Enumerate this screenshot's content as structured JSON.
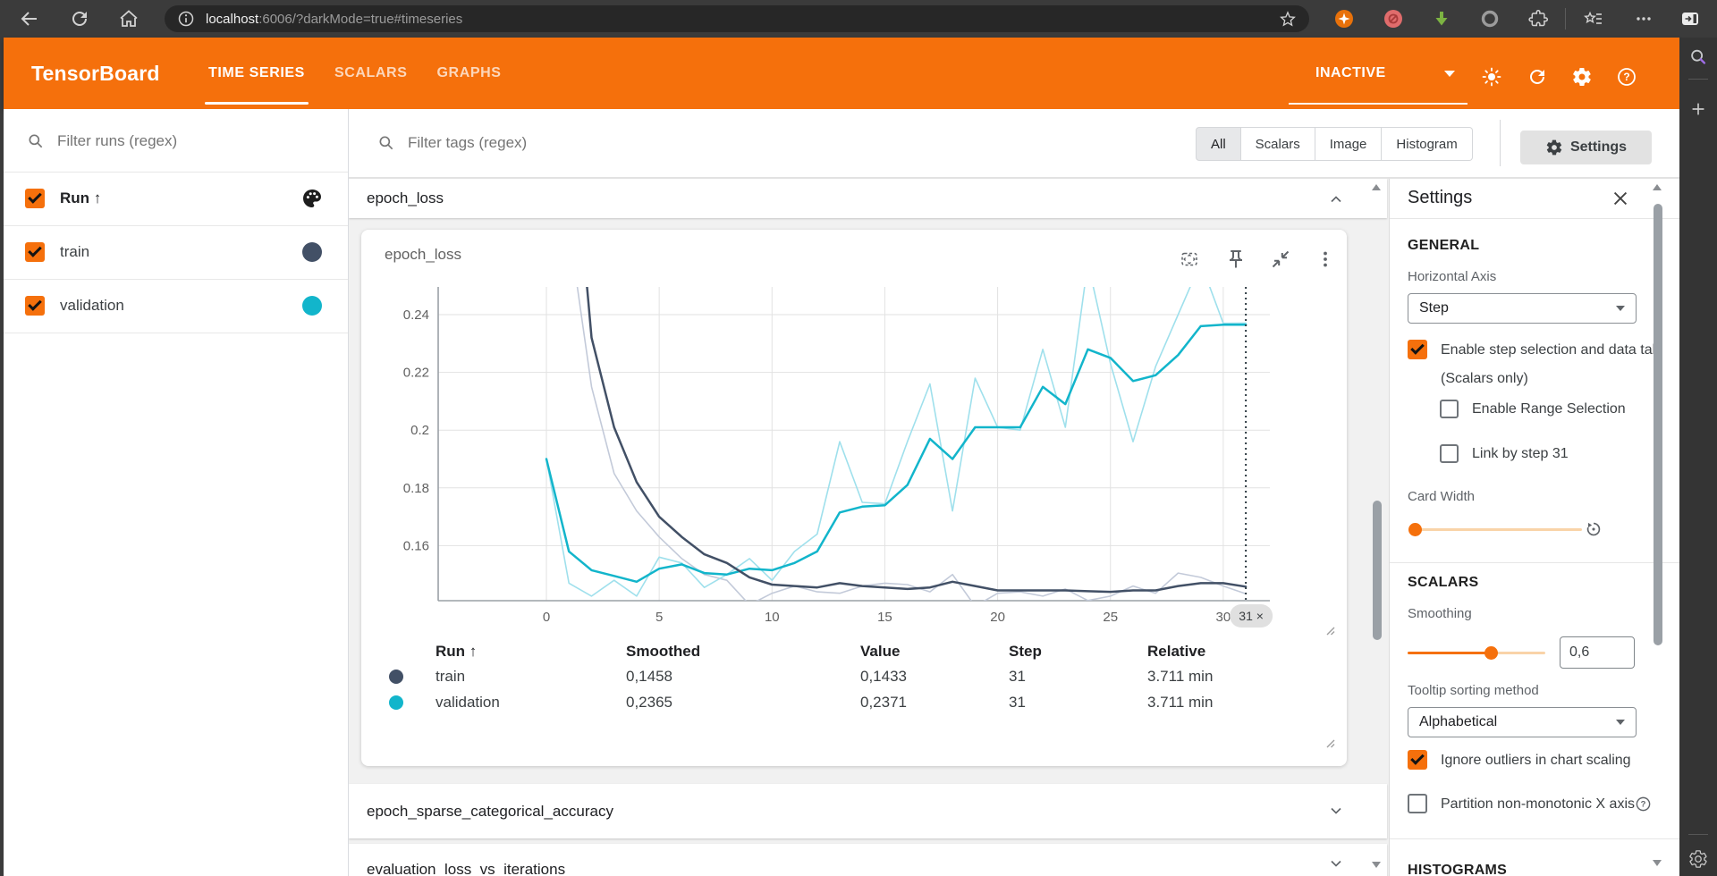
{
  "browser": {
    "url": {
      "host": "localhost",
      "rest": ":6006/?darkMode=true#timeseries"
    }
  },
  "tb_header": {
    "title": "TensorBoard",
    "tabs": [
      {
        "label": "TIME SERIES",
        "active": true
      },
      {
        "label": "SCALARS",
        "active": false
      },
      {
        "label": "GRAPHS",
        "active": false
      }
    ],
    "status": "INACTIVE"
  },
  "runs_sidebar": {
    "filter_placeholder": "Filter runs (regex)",
    "header_label": "Run ↑",
    "runs": [
      {
        "name": "train",
        "color": "#425066",
        "checked": true
      },
      {
        "name": "validation",
        "color": "#12b5cb",
        "checked": true
      }
    ]
  },
  "tag_toolbar": {
    "filter_placeholder": "Filter tags (regex)",
    "chips": [
      {
        "label": "All",
        "active": true
      },
      {
        "label": "Scalars",
        "active": false
      },
      {
        "label": "Image",
        "active": false
      },
      {
        "label": "Histogram",
        "active": false
      }
    ],
    "settings_button": "Settings"
  },
  "sections": [
    {
      "title": "epoch_loss",
      "expanded": true
    },
    {
      "title": "epoch_sparse_categorical_accuracy",
      "expanded": false
    },
    {
      "title": "evaluation_loss_vs_iterations",
      "expanded": false
    }
  ],
  "card": {
    "title": "epoch_loss",
    "step_pill": "31 ×",
    "table": {
      "headers": [
        "Run ↑",
        "Smoothed",
        "Value",
        "Step",
        "Relative"
      ],
      "rows": [
        {
          "color": "#425066",
          "run": "train",
          "smoothed": "0,1458",
          "value": "0,1433",
          "step": "31",
          "relative": "3.711 min"
        },
        {
          "color": "#12b5cb",
          "run": "validation",
          "smoothed": "0,2365",
          "value": "0,2371",
          "step": "31",
          "relative": "3.711 min"
        }
      ]
    }
  },
  "chart_data": {
    "type": "line",
    "title": "epoch_loss",
    "xlabel": "Step",
    "ylabel": "",
    "x_ticks": [
      0,
      5,
      10,
      15,
      20,
      25,
      30
    ],
    "y_ticks": [
      "0.24",
      "0.22",
      "0.2",
      "0.18",
      "0.16"
    ],
    "ylim": [
      0.141,
      0.249
    ],
    "xlim": [
      -0.5,
      31.8
    ],
    "grid": true,
    "selected_step": 31,
    "legend_position": "table-below",
    "series": [
      {
        "name": "train (smoothed)",
        "color": "#425066",
        "width": 2.5,
        "values": [
          0.6,
          0.32,
          0.232,
          0.201,
          0.182,
          0.17,
          0.163,
          0.157,
          0.154,
          0.149,
          0.1465,
          0.146,
          0.1455,
          0.147,
          0.146,
          0.1455,
          0.145,
          0.1455,
          0.1475,
          0.146,
          0.1445,
          0.1445,
          0.1445,
          0.1445,
          0.1442,
          0.144,
          0.1445,
          0.1445,
          0.146,
          0.147,
          0.147,
          0.1458
        ]
      },
      {
        "name": "train (raw)",
        "color": "#c3cad9",
        "width": 1.6,
        "values": [
          0.55,
          0.27,
          0.215,
          0.185,
          0.172,
          0.163,
          0.1555,
          0.15,
          0.148,
          0.1395,
          0.1435,
          0.146,
          0.144,
          0.1435,
          0.146,
          0.147,
          0.1465,
          0.144,
          0.15,
          0.139,
          0.1435,
          0.144,
          0.1425,
          0.145,
          0.141,
          0.1425,
          0.146,
          0.1435,
          0.1505,
          0.149,
          0.146,
          0.1433
        ]
      },
      {
        "name": "validation (smoothed)",
        "color": "#12b5cb",
        "width": 2.5,
        "values": [
          0.19,
          0.158,
          0.1515,
          0.1495,
          0.1475,
          0.152,
          0.1535,
          0.1505,
          0.15,
          0.152,
          0.1515,
          0.154,
          0.158,
          0.1715,
          0.1735,
          0.174,
          0.181,
          0.197,
          0.19,
          0.201,
          0.201,
          0.201,
          0.215,
          0.209,
          0.228,
          0.225,
          0.217,
          0.219,
          0.226,
          0.236,
          0.2365,
          0.2365
        ]
      },
      {
        "name": "validation (raw)",
        "color": "#9fe0ec",
        "width": 1.6,
        "values": [
          0.19,
          0.147,
          0.1425,
          0.148,
          0.1425,
          0.156,
          0.154,
          0.1455,
          0.15,
          0.1555,
          0.148,
          0.158,
          0.164,
          0.196,
          0.175,
          0.1745,
          0.196,
          0.216,
          0.172,
          0.218,
          0.201,
          0.2,
          0.228,
          0.201,
          0.258,
          0.223,
          0.196,
          0.222,
          0.24,
          0.258,
          0.237,
          0.2371
        ]
      }
    ]
  },
  "settings_panel": {
    "title": "Settings",
    "general": {
      "heading": "GENERAL",
      "horizontal_axis_label": "Horizontal Axis",
      "horizontal_axis_value": "Step",
      "step_selection_label": "Enable step selection and data table",
      "scalars_only": "(Scalars only)",
      "range_selection_label": "Enable Range Selection",
      "link_by_step_label": "Link by step 31",
      "card_width_label": "Card Width"
    },
    "scalars": {
      "heading": "SCALARS",
      "smoothing_label": "Smoothing",
      "smoothing_value": "0,6",
      "tooltip_label": "Tooltip sorting method",
      "tooltip_value": "Alphabetical",
      "ignore_outliers_label": "Ignore outliers in chart scaling",
      "partition_label": "Partition non-monotonic X axis"
    },
    "histograms": {
      "heading": "HISTOGRAMS"
    }
  }
}
